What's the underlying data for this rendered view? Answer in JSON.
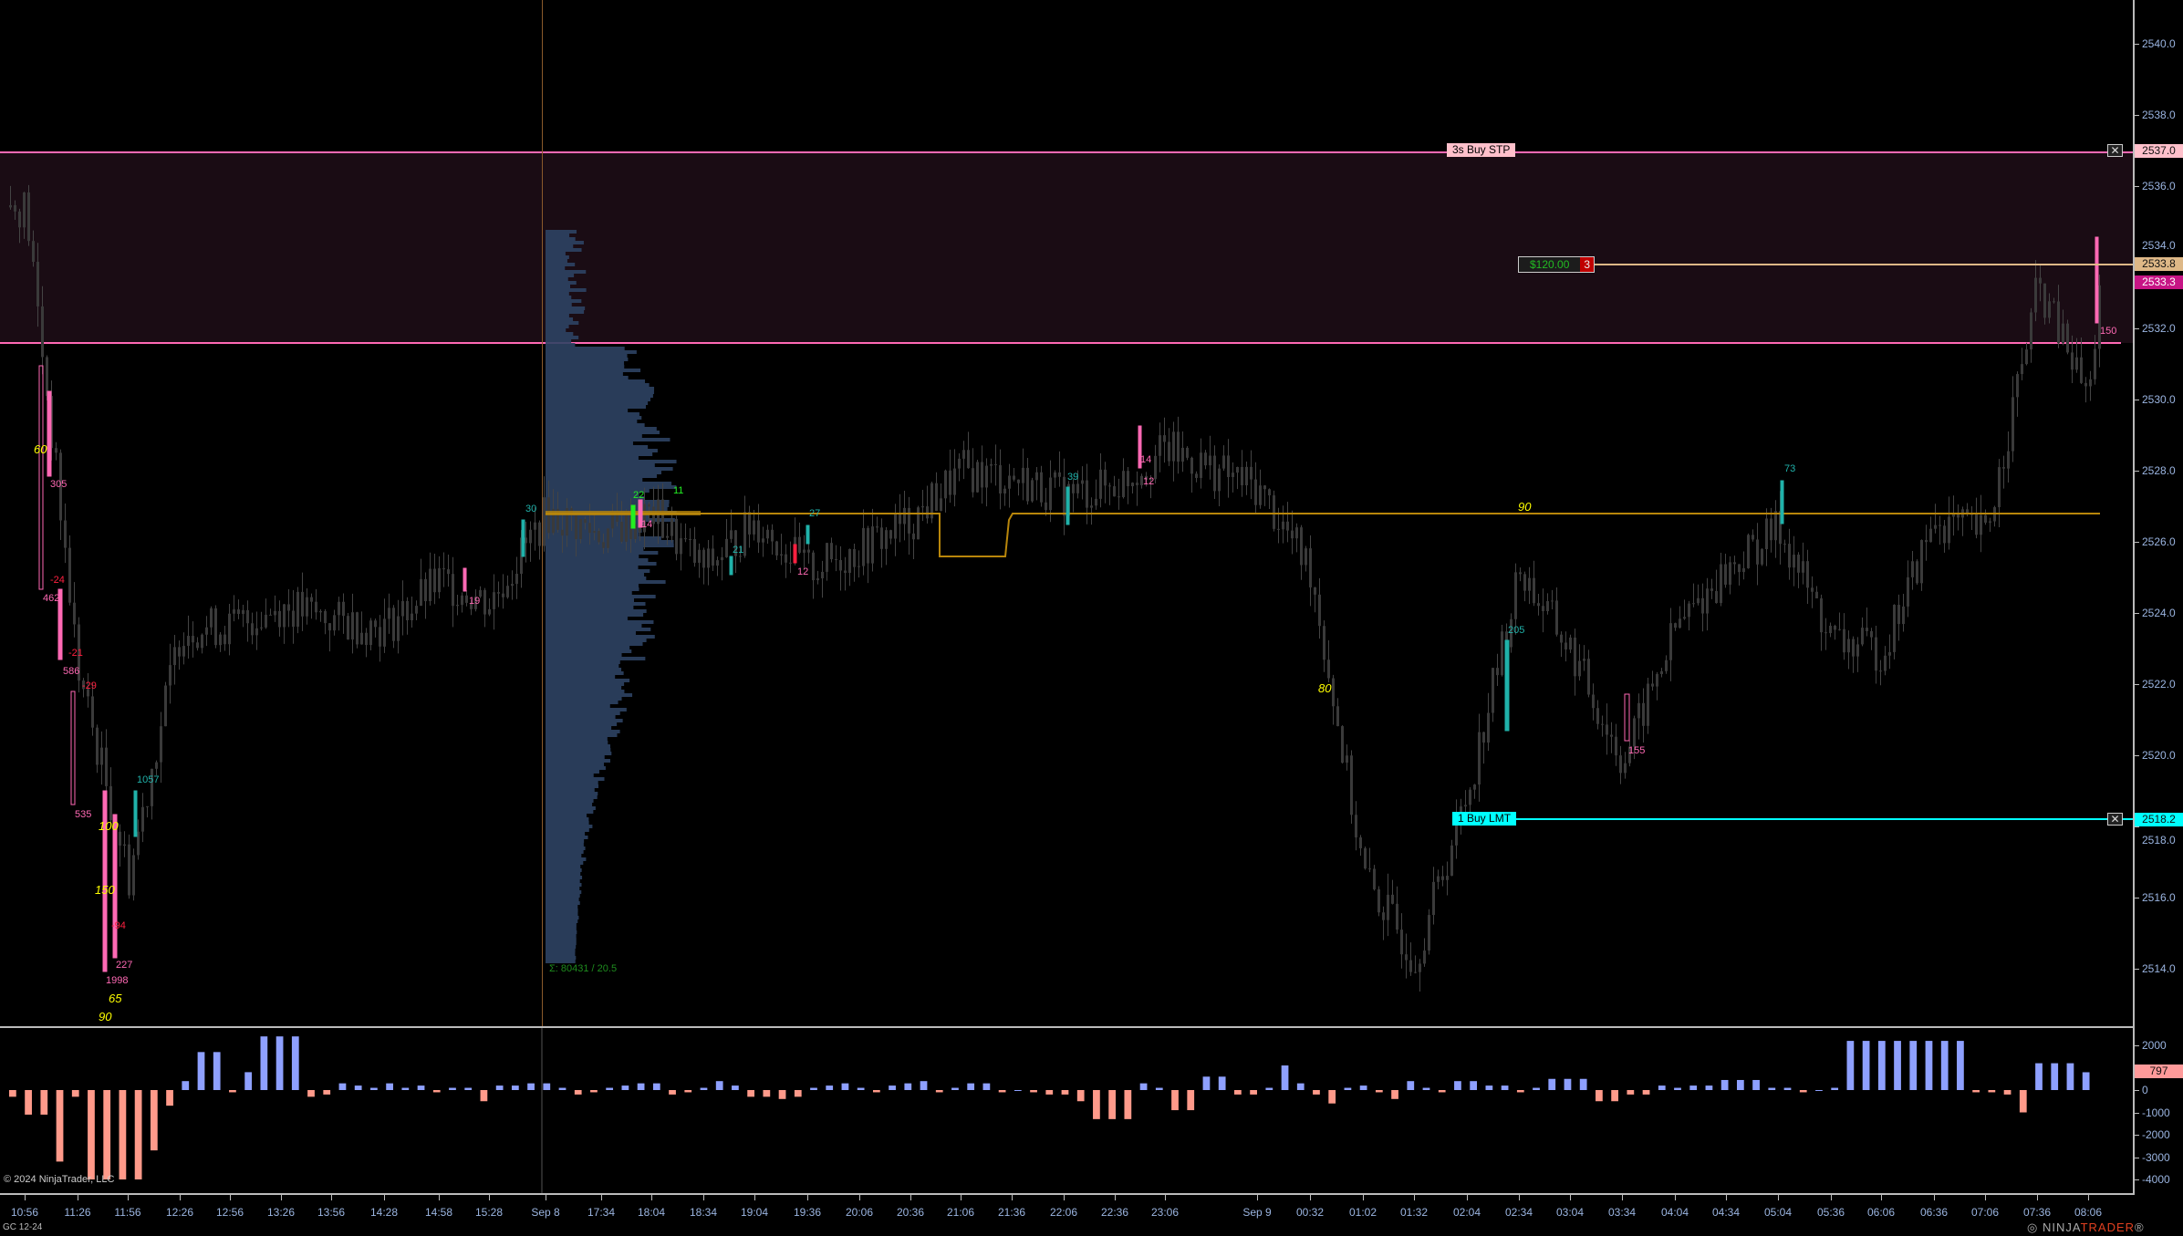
{
  "instrument": "GC 12-24",
  "copyright": "© 2024 NinjaTrader, LLC",
  "logo": "NINJATRADER",
  "price_axis": {
    "ticks": [
      "2540.0",
      "2538.0",
      "2536.0",
      "2534.0",
      "2532.0",
      "2530.0",
      "2528.0",
      "2526.0",
      "2524.0",
      "2522.0",
      "2520.0",
      "2518.0",
      "2516.0",
      "2514.0"
    ]
  },
  "lower_axis": {
    "ticks": [
      "2000",
      "0",
      "-1000",
      "-2000",
      "-3000",
      "-4000"
    ],
    "current": "797"
  },
  "time_axis": [
    "10:56",
    "11:26",
    "11:56",
    "12:26",
    "12:56",
    "13:26",
    "13:56",
    "14:28",
    "14:58",
    "15:28",
    "Sep 8",
    "17:34",
    "18:04",
    "18:34",
    "19:04",
    "19:36",
    "20:06",
    "20:36",
    "21:06",
    "21:36",
    "22:06",
    "22:36",
    "23:06",
    "Sep 9",
    "00:32",
    "01:02",
    "01:32",
    "02:04",
    "02:34",
    "03:04",
    "03:34",
    "04:04",
    "04:34",
    "05:04",
    "05:36",
    "06:06",
    "06:36",
    "07:06",
    "07:36",
    "08:06"
  ],
  "orders": {
    "stop": {
      "label": "3s  Buy STP",
      "price": "2537.0",
      "color": "#ffc0cb"
    },
    "limit": {
      "label": "1  Buy LMT",
      "price": "2518.2",
      "color": "#00ffff"
    },
    "position": {
      "pnl": "$120.00",
      "qty": "3",
      "price": "2533.8",
      "color": "#deb887"
    },
    "last_price": {
      "price": "2533.3",
      "color": "#c71585"
    },
    "cancel_icon": "close-x-icon"
  },
  "profile_summary": "Σ: 80431 / 20.5",
  "annotations": [
    "60",
    "305",
    "-24",
    "462",
    "-21",
    "586",
    "-29",
    "535",
    "100",
    "1057",
    "150",
    "-94",
    "227",
    "1998",
    "65",
    "90",
    "19",
    "30",
    "22",
    "11",
    "14",
    "21",
    "27",
    "12",
    "39",
    "14",
    "12",
    "90",
    "80",
    "205",
    "155",
    "73",
    "150"
  ],
  "colors": {
    "up_delta": "#8ea0ff",
    "down_delta": "#ff9a8a",
    "candle": "#3a3a3a",
    "profile": "#2e4263",
    "poc": "#b8860b",
    "zone": "#1a0c14"
  },
  "chart_data": {
    "type": "candlestick",
    "price_range": [
      2513.5,
      2541
    ],
    "path": [
      [
        "10:56",
        2535.4
      ],
      [
        "11:26",
        2522.3
      ],
      [
        "11:56",
        2516.6
      ],
      [
        "12:26",
        2523.6
      ],
      [
        "12:56",
        2523.6
      ],
      [
        "13:26",
        2524.2
      ],
      [
        "13:56",
        2523.8
      ],
      [
        "14:28",
        2523.6
      ],
      [
        "14:58",
        2524.9
      ],
      [
        "15:28",
        2524.3
      ],
      [
        "Sep 8",
        2526.8
      ],
      [
        "17:34",
        2526.2
      ],
      [
        "18:04",
        2526.8
      ],
      [
        "18:34",
        2525.2
      ],
      [
        "19:04",
        2526.6
      ],
      [
        "19:36",
        2525.2
      ],
      [
        "20:06",
        2525.8
      ],
      [
        "20:36",
        2526.6
      ],
      [
        "21:06",
        2528
      ],
      [
        "21:36",
        2527.8
      ],
      [
        "22:06",
        2527.3
      ],
      [
        "22:36",
        2527.6
      ],
      [
        "23:06",
        2528.6
      ],
      [
        "Sep 9",
        2527.5
      ],
      [
        "00:32",
        2525.2
      ],
      [
        "01:02",
        2516.6
      ],
      [
        "01:32",
        2514.3
      ],
      [
        "02:04",
        2519
      ],
      [
        "02:34",
        2525.2
      ],
      [
        "03:04",
        2522.9
      ],
      [
        "03:34",
        2519.8
      ],
      [
        "04:04",
        2523.6
      ],
      [
        "04:34",
        2525.2
      ],
      [
        "05:04",
        2526.4
      ],
      [
        "05:36",
        2523.2
      ],
      [
        "06:06",
        2522.9
      ],
      [
        "06:36",
        2526.6
      ],
      [
        "07:06",
        2526.2
      ],
      [
        "07:36",
        2533.2
      ],
      [
        "08:06",
        2530
      ],
      [
        "08:06+",
        2533.3
      ]
    ],
    "delta": [
      -300,
      -1100,
      -1100,
      -3200,
      -300,
      -4000,
      -4000,
      -4000,
      -4000,
      -2700,
      -700,
      400,
      1700,
      1700,
      -100,
      800,
      2400,
      2400,
      2400,
      -300,
      -200,
      300,
      200,
      100,
      300,
      100,
      200,
      -100,
      100,
      100,
      -500,
      200,
      200,
      300,
      300,
      100,
      -200,
      -100,
      100,
      200,
      300,
      300,
      -200,
      -100,
      100,
      400,
      200,
      -300,
      -300,
      -400,
      -300,
      100,
      200,
      300,
      100,
      -100,
      200,
      300,
      400,
      -100,
      100,
      300,
      300,
      -100,
      0,
      -100,
      -200,
      -200,
      -500,
      -1300,
      -1300,
      -1300,
      300,
      100,
      -900,
      -900,
      600,
      600,
      -200,
      -200,
      100,
      1100,
      300,
      -200,
      -600,
      100,
      200,
      -100,
      -400,
      400,
      100,
      -100,
      400,
      400,
      200,
      200,
      -100,
      100,
      500,
      500,
      500,
      -500,
      -500,
      -200,
      -200,
      200,
      100,
      200,
      200,
      450,
      450,
      450,
      100,
      100,
      -100,
      0,
      100,
      2200,
      2200,
      2200,
      2200,
      2200,
      2200,
      2200,
      2200,
      -100,
      -100,
      -200,
      -1000,
      1200,
      1200,
      1200,
      797
    ]
  }
}
